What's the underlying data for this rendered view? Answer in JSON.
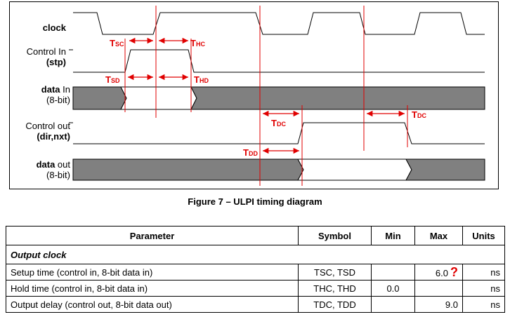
{
  "signals": {
    "clock": "clock",
    "control_in_1": "Control In",
    "control_in_2": "(stp)",
    "data_in_1": "data",
    "data_in_1b": " In",
    "data_in_2": "(8-bit)",
    "control_out_1": "Control out",
    "control_out_2": "(dir,nxt)",
    "data_out_1": "data",
    "data_out_1b": " out",
    "data_out_2": "(8-bit)"
  },
  "timing_labels": {
    "tsc": "T",
    "tsc_sub": "SC",
    "thc": "T",
    "thc_sub": "HC",
    "tsd": "T",
    "tsd_sub": "SD",
    "thd": "T",
    "thd_sub": "HD",
    "tdc1": "T",
    "tdc1_sub": "DC",
    "tdc2": "T",
    "tdc2_sub": "DC",
    "tdd": "T",
    "tdd_sub": "DD"
  },
  "caption": "Figure 7 – ULPI timing diagram",
  "table": {
    "headers": [
      "Parameter",
      "Symbol",
      "Min",
      "Max",
      "Units"
    ],
    "section": "Output clock",
    "rows": [
      {
        "parameter": "Setup time (control in, 8-bit data in)",
        "symbol": "TSC, TSD",
        "min": "",
        "max": "6.0",
        "units": "ns",
        "flag": "?"
      },
      {
        "parameter": "Hold time (control in, 8-bit data in)",
        "symbol": "THC, THD",
        "min": "0.0",
        "max": "",
        "units": "ns",
        "flag": ""
      },
      {
        "parameter": "Output delay (control out, 8-bit data out)",
        "symbol": "TDC, TDD",
        "min": "",
        "max": "9.0",
        "units": "ns",
        "flag": ""
      }
    ]
  },
  "colors": {
    "marker": "#e00000",
    "bus_fill": "#808080"
  }
}
